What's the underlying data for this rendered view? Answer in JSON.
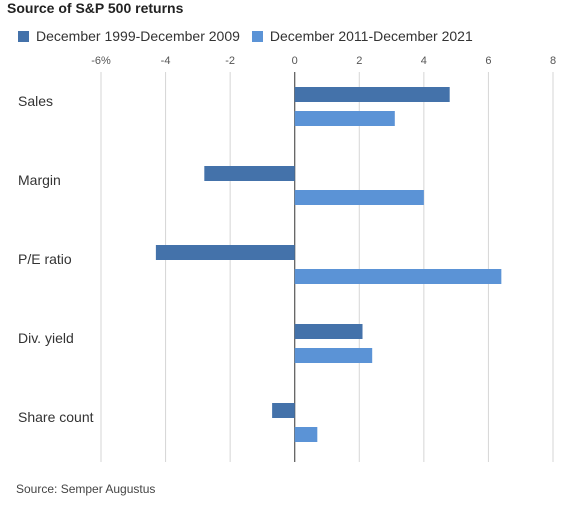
{
  "chart_data": {
    "type": "bar",
    "orientation": "horizontal",
    "title": "Source of S&P 500 returns",
    "categories": [
      "Sales",
      "Margin",
      "P/E ratio",
      "Div. yield",
      "Share count"
    ],
    "series": [
      {
        "name": "December 1999-December 2009",
        "color": "#4472aa",
        "values": [
          4.8,
          -2.8,
          -4.3,
          2.1,
          -0.7
        ]
      },
      {
        "name": "December 2011-December 2021",
        "color": "#5b93d6",
        "values": [
          3.1,
          4.0,
          6.4,
          2.4,
          0.7
        ]
      }
    ],
    "xlim": [
      -6,
      8
    ],
    "xticks": [
      -6,
      -4,
      -2,
      0,
      2,
      4,
      6,
      8
    ],
    "xtick_labels": [
      "-6%",
      "-4",
      "-2",
      "0",
      "2",
      "4",
      "6",
      "8"
    ],
    "grid": true,
    "legend_position": "top-left",
    "source": "Source: Semper Augustus"
  }
}
